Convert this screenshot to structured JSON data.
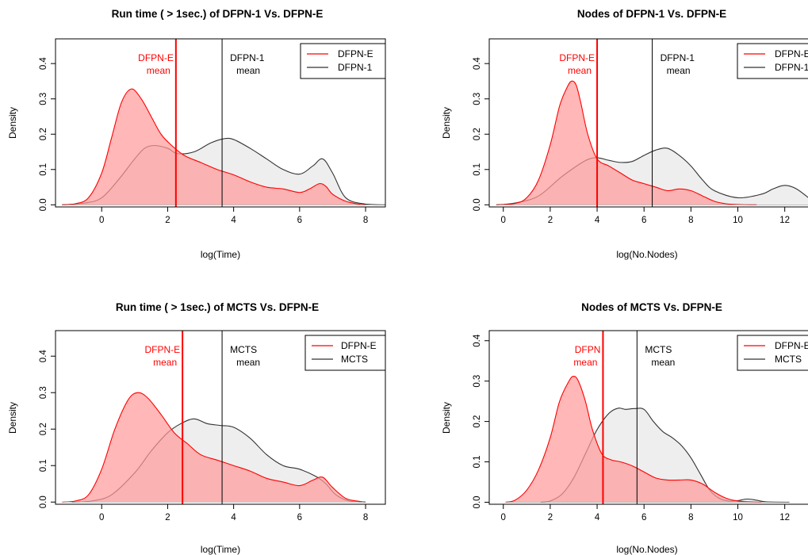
{
  "chart_data": [
    {
      "type": "area",
      "title": "Run time ( > 1sec.) of  DFPN-1 Vs. DFPN-E",
      "xlabel": "log(Time)",
      "ylabel": "Density",
      "xlim": [
        -1.4,
        8.6
      ],
      "ylim": [
        -0.006,
        0.47
      ],
      "xticks": [
        0,
        2,
        4,
        6,
        8
      ],
      "yticks": [
        0.0,
        0.1,
        0.2,
        0.3,
        0.4
      ],
      "ytick_labels": [
        "0.0",
        "0.1",
        "0.2",
        "0.3",
        "0.4"
      ],
      "legend": {
        "position": "top-right",
        "entries": [
          "DFPN-E",
          "DFPN-1"
        ]
      },
      "series": [
        {
          "name": "DFPN-E",
          "color": "#ff0000",
          "fill": "#ff9999",
          "x": [
            -1.2,
            -0.8,
            -0.4,
            0,
            0.3,
            0.6,
            0.9,
            1.2,
            1.5,
            1.8,
            2.1,
            2.5,
            3,
            3.5,
            4,
            4.5,
            5,
            5.5,
            6,
            6.3,
            6.6,
            6.8,
            7,
            7.4,
            7.8,
            8
          ],
          "y": [
            0,
            0.003,
            0.02,
            0.09,
            0.19,
            0.29,
            0.328,
            0.3,
            0.25,
            0.2,
            0.17,
            0.14,
            0.12,
            0.1,
            0.085,
            0.065,
            0.05,
            0.045,
            0.035,
            0.045,
            0.06,
            0.052,
            0.03,
            0.01,
            0.002,
            0
          ]
        },
        {
          "name": "DFPN-1",
          "color": "#333333",
          "fill": "#eeeeee",
          "x": [
            -1.2,
            -0.5,
            0,
            0.5,
            1,
            1.3,
            1.6,
            2,
            2.3,
            2.8,
            3.3,
            3.7,
            4,
            4.5,
            5,
            5.5,
            6,
            6.4,
            6.7,
            7,
            7.4,
            8,
            8.6
          ],
          "y": [
            0,
            0.005,
            0.02,
            0.07,
            0.13,
            0.16,
            0.168,
            0.16,
            0.145,
            0.15,
            0.175,
            0.187,
            0.185,
            0.16,
            0.13,
            0.1,
            0.087,
            0.11,
            0.13,
            0.09,
            0.02,
            0.002,
            0
          ]
        }
      ],
      "mean_lines": [
        {
          "label_line1": "DFPN-E",
          "label_line2": "mean",
          "x": 2.25,
          "color": "#ff0000"
        },
        {
          "label_line1": "DFPN-1",
          "label_line2": "mean",
          "x": 3.65,
          "color": "#000000"
        }
      ]
    },
    {
      "type": "area",
      "title": "Nodes of DFPN-1 Vs. DFPN-E",
      "xlabel": "log(No.Nodes)",
      "ylabel": "Density",
      "xlim": [
        -0.6,
        13.6
      ],
      "ylim": [
        -0.006,
        0.47
      ],
      "xticks": [
        0,
        2,
        4,
        6,
        8,
        10,
        12
      ],
      "yticks": [
        0.0,
        0.1,
        0.2,
        0.3,
        0.4
      ],
      "ytick_labels": [
        "0.0",
        "0.1",
        "0.2",
        "0.3",
        "0.4"
      ],
      "legend": {
        "position": "top-right",
        "entries": [
          "DFPN-E",
          "DFPN-1"
        ]
      },
      "series": [
        {
          "name": "DFPN-E",
          "color": "#ff0000",
          "fill": "#ff9999",
          "x": [
            -0.3,
            0.5,
            1,
            1.5,
            2,
            2.4,
            2.7,
            2.9,
            3.1,
            3.3,
            3.6,
            4,
            4.5,
            5,
            5.5,
            6,
            6.5,
            7,
            7.5,
            8,
            8.5,
            9,
            9.5,
            10,
            10.5,
            10.8
          ],
          "y": [
            0,
            0.004,
            0.02,
            0.07,
            0.17,
            0.28,
            0.33,
            0.35,
            0.34,
            0.29,
            0.2,
            0.13,
            0.11,
            0.09,
            0.07,
            0.06,
            0.05,
            0.04,
            0.045,
            0.04,
            0.025,
            0.01,
            0.003,
            0.001,
            0,
            0
          ]
        },
        {
          "name": "DFPN-1",
          "color": "#333333",
          "fill": "#eeeeee",
          "x": [
            -0.3,
            0.5,
            1.5,
            2.5,
            3.5,
            4,
            4.5,
            5,
            5.5,
            6,
            6.5,
            7,
            7.5,
            8,
            8.5,
            9,
            10,
            11,
            11.5,
            12,
            12.5,
            13.2
          ],
          "y": [
            0,
            0.005,
            0.025,
            0.08,
            0.125,
            0.133,
            0.126,
            0.12,
            0.123,
            0.14,
            0.155,
            0.16,
            0.14,
            0.11,
            0.07,
            0.04,
            0.02,
            0.03,
            0.045,
            0.055,
            0.045,
            0.01
          ]
        }
      ],
      "mean_lines": [
        {
          "label_line1": "DFPN-E",
          "label_line2": "mean",
          "x": 4.0,
          "color": "#ff0000"
        },
        {
          "label_line1": "DFPN-1",
          "label_line2": "mean",
          "x": 6.35,
          "color": "#000000"
        }
      ]
    },
    {
      "type": "area",
      "title": "Run time ( > 1sec.) of  MCTS Vs. DFPN-E",
      "xlabel": "log(Time)",
      "ylabel": "Density",
      "xlim": [
        -1.4,
        8.6
      ],
      "ylim": [
        -0.006,
        0.47
      ],
      "xticks": [
        0,
        2,
        4,
        6,
        8
      ],
      "yticks": [
        0.0,
        0.1,
        0.2,
        0.3,
        0.4
      ],
      "ytick_labels": [
        "0.0",
        "0.1",
        "0.2",
        "0.3",
        "0.4"
      ],
      "legend": {
        "position": "top-right",
        "entries": [
          "DFPN-E",
          "MCTS"
        ]
      },
      "series": [
        {
          "name": "DFPN-E",
          "color": "#ff0000",
          "fill": "#ff9999",
          "x": [
            -1.2,
            -0.8,
            -0.4,
            0,
            0.4,
            0.8,
            1.1,
            1.4,
            1.8,
            2.2,
            2.6,
            3,
            3.5,
            4,
            4.5,
            5,
            5.5,
            6,
            6.4,
            6.7,
            7,
            7.4,
            7.8,
            8
          ],
          "y": [
            0,
            0.003,
            0.02,
            0.09,
            0.2,
            0.28,
            0.3,
            0.285,
            0.24,
            0.19,
            0.16,
            0.13,
            0.115,
            0.1,
            0.085,
            0.065,
            0.055,
            0.045,
            0.06,
            0.068,
            0.04,
            0.01,
            0.002,
            0
          ]
        },
        {
          "name": "MCTS",
          "color": "#333333",
          "fill": "#eeeeee",
          "x": [
            -0.9,
            -0.3,
            0.3,
            1,
            1.5,
            2,
            2.4,
            2.8,
            3.2,
            3.6,
            4,
            4.5,
            5,
            5.5,
            6,
            6.5,
            6.8,
            7.1,
            7.5,
            8
          ],
          "y": [
            0,
            0.003,
            0.02,
            0.08,
            0.14,
            0.19,
            0.215,
            0.228,
            0.215,
            0.21,
            0.205,
            0.175,
            0.13,
            0.1,
            0.09,
            0.07,
            0.05,
            0.02,
            0.003,
            0
          ]
        }
      ],
      "mean_lines": [
        {
          "label_line1": "DFPN-E",
          "label_line2": "mean",
          "x": 2.45,
          "color": "#ff0000"
        },
        {
          "label_line1": "MCTS",
          "label_line2": "mean",
          "x": 3.65,
          "color": "#000000"
        }
      ]
    },
    {
      "type": "area",
      "title": "Nodes of MCTS Vs. DFPN-E",
      "xlabel": "log(No.Nodes)",
      "ylabel": "Density",
      "xlim": [
        -0.6,
        13.6
      ],
      "ylim": [
        -0.005,
        0.425
      ],
      "xticks": [
        0,
        2,
        4,
        6,
        8,
        10,
        12
      ],
      "yticks": [
        0.0,
        0.1,
        0.2,
        0.3,
        0.4
      ],
      "ytick_labels": [
        "0.0",
        "0.1",
        "0.2",
        "0.3",
        "0.4"
      ],
      "legend": {
        "position": "top-right",
        "entries": [
          "DFPN-E",
          "MCTS"
        ]
      },
      "series": [
        {
          "name": "DFPN-E",
          "color": "#ff0000",
          "fill": "#ff9999",
          "x": [
            0.1,
            0.5,
            1,
            1.5,
            2,
            2.4,
            2.8,
            3,
            3.2,
            3.5,
            3.8,
            4.2,
            4.6,
            5,
            5.5,
            6,
            6.5,
            7,
            7.5,
            8,
            8.5,
            9,
            9.5,
            10,
            10.5,
            11
          ],
          "y": [
            0,
            0.005,
            0.03,
            0.08,
            0.16,
            0.25,
            0.3,
            0.312,
            0.3,
            0.25,
            0.18,
            0.12,
            0.105,
            0.1,
            0.09,
            0.075,
            0.06,
            0.055,
            0.055,
            0.055,
            0.045,
            0.025,
            0.01,
            0.003,
            0.001,
            0
          ]
        },
        {
          "name": "MCTS",
          "color": "#333333",
          "fill": "#eeeeee",
          "x": [
            1.6,
            2,
            2.5,
            3,
            3.5,
            4,
            4.5,
            4.9,
            5.2,
            5.6,
            6,
            6.4,
            6.8,
            7.2,
            7.6,
            8,
            8.4,
            8.8,
            9.2,
            9.6,
            10,
            10.4,
            10.8,
            11.2,
            12.2
          ],
          "y": [
            0,
            0.003,
            0.02,
            0.06,
            0.12,
            0.18,
            0.22,
            0.233,
            0.23,
            0.232,
            0.23,
            0.2,
            0.175,
            0.16,
            0.14,
            0.11,
            0.07,
            0.03,
            0.01,
            0.003,
            0.004,
            0.008,
            0.005,
            0.001,
            0
          ]
        }
      ],
      "mean_lines": [
        {
          "label_line1": "DFPN",
          "label_line2": "mean",
          "x": 4.25,
          "color": "#ff0000"
        },
        {
          "label_line1": "MCTS",
          "label_line2": "mean",
          "x": 5.7,
          "color": "#000000"
        }
      ]
    }
  ]
}
